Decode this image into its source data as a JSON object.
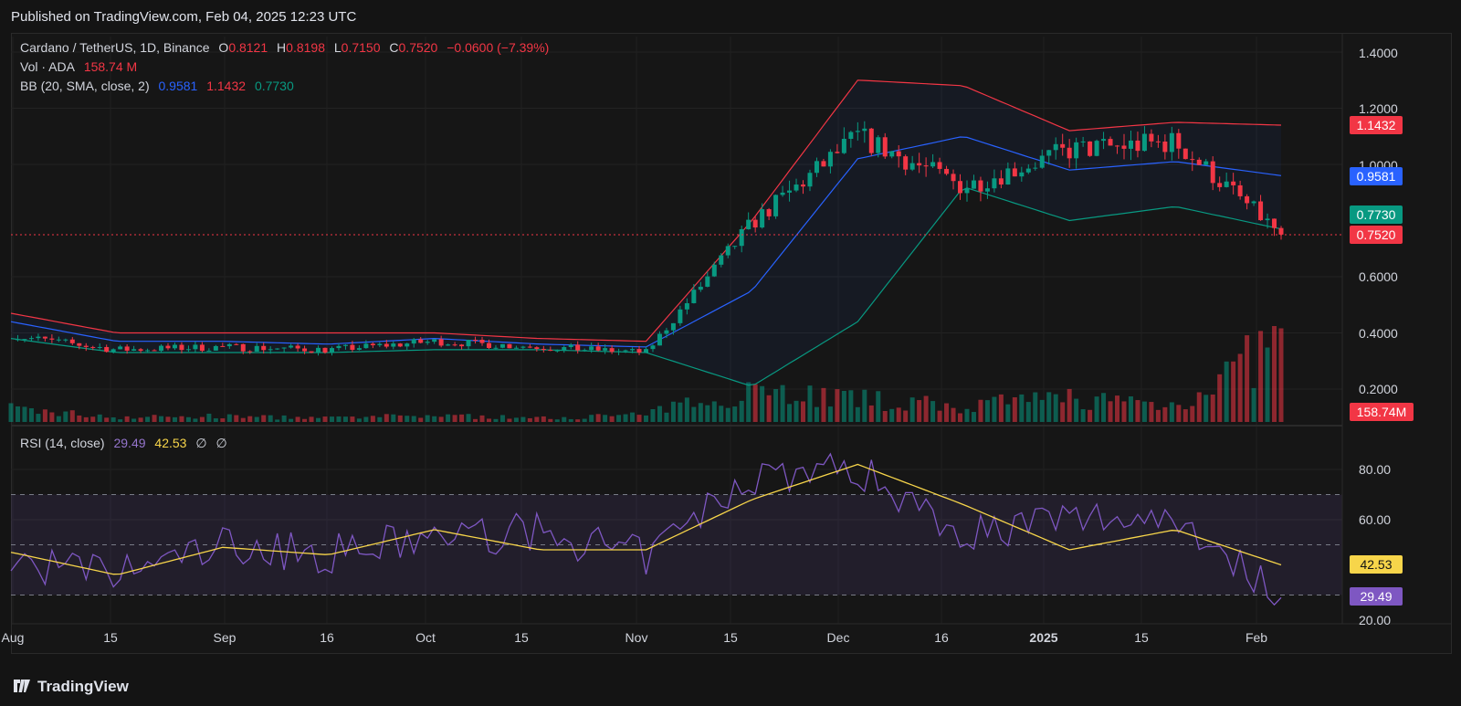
{
  "header": {
    "published": "Published on TradingView.com, Feb 04, 2025 12:23 UTC"
  },
  "legend": {
    "symbol": "Cardano / TetherUS, 1D, Binance",
    "o_label": "O",
    "o": "0.8121",
    "h_label": "H",
    "h": "0.8198",
    "l_label": "L",
    "l": "0.7150",
    "c_label": "C",
    "c": "0.7520",
    "change": "−0.0600 (−7.39%)",
    "vol_label": "Vol · ADA",
    "vol": "158.74 M",
    "bb_label": "BB (20, SMA, close, 2)",
    "bb_basis": "0.9581",
    "bb_upper": "1.1432",
    "bb_lower": "0.7730",
    "rsi_label": "RSI (14, close)",
    "rsi": "29.49",
    "rsi_ma": "42.53",
    "rsi_x1": "∅",
    "rsi_x2": "∅"
  },
  "price_axis": [
    "1.4000",
    "1.2000",
    "1.0000",
    "0.6000",
    "0.4000",
    "0.2000"
  ],
  "price_tags": {
    "bb_upper": "1.1432",
    "bb_basis": "0.9581",
    "bb_lower": "0.7730",
    "last": "0.7520",
    "volume": "158.74M"
  },
  "rsi_axis": [
    "80.00",
    "60.00",
    "20.00"
  ],
  "rsi_tags": {
    "ma": "42.53",
    "rsi": "29.49"
  },
  "time_axis": [
    "Aug",
    "15",
    "Sep",
    "16",
    "Oct",
    "15",
    "Nov",
    "15",
    "Dec",
    "16",
    "2025",
    "15",
    "Feb"
  ],
  "footer": {
    "brand": "TradingView"
  },
  "colors": {
    "up": "#089981",
    "down": "#f23645",
    "bb_upper": "#f23645",
    "bb_basis": "#2962ff",
    "bb_lower": "#089981",
    "rsi": "#7e57c2",
    "rsi_ma": "#f7d54a",
    "background": "#161616"
  },
  "chart_data": {
    "type": "candlestick",
    "symbol": "Cardano / TetherUS",
    "interval": "1D",
    "price_range": [
      0.1,
      1.43
    ],
    "rsi_range": [
      20,
      90
    ],
    "rsi_bands": [
      30,
      50,
      70
    ],
    "dates": [
      "2024-08-01",
      "2024-08-15",
      "2024-09-01",
      "2024-09-16",
      "2024-10-01",
      "2024-10-15",
      "2024-11-01",
      "2024-11-15",
      "2024-12-01",
      "2024-12-16",
      "2025-01-01",
      "2025-01-15",
      "2025-02-01"
    ],
    "close": [
      0.39,
      0.34,
      0.35,
      0.34,
      0.37,
      0.35,
      0.33,
      0.79,
      1.1,
      0.92,
      1.05,
      1.08,
      0.75
    ],
    "bb_upper": [
      0.47,
      0.4,
      0.4,
      0.4,
      0.4,
      0.38,
      0.37,
      0.8,
      1.3,
      1.28,
      1.12,
      1.15,
      1.14
    ],
    "bb_basis": [
      0.44,
      0.37,
      0.37,
      0.36,
      0.38,
      0.36,
      0.35,
      0.55,
      1.02,
      1.1,
      0.98,
      1.01,
      0.96
    ],
    "bb_lower": [
      0.38,
      0.33,
      0.33,
      0.33,
      0.34,
      0.34,
      0.33,
      0.21,
      0.44,
      0.92,
      0.8,
      0.85,
      0.77
    ],
    "volume_m": [
      70,
      25,
      30,
      20,
      35,
      20,
      40,
      180,
      120,
      80,
      130,
      90,
      420
    ],
    "rsi": [
      43,
      38,
      50,
      46,
      53,
      55,
      45,
      78,
      80,
      55,
      60,
      62,
      29
    ],
    "rsi_ma": [
      47,
      38,
      49,
      46,
      56,
      48,
      48,
      68,
      82,
      66,
      48,
      56,
      42
    ]
  }
}
